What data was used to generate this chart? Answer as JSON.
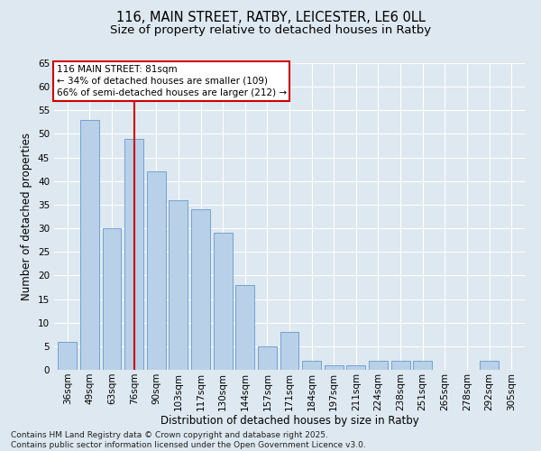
{
  "title1": "116, MAIN STREET, RATBY, LEICESTER, LE6 0LL",
  "title2": "Size of property relative to detached houses in Ratby",
  "xlabel": "Distribution of detached houses by size in Ratby",
  "ylabel": "Number of detached properties",
  "categories": [
    "36sqm",
    "49sqm",
    "63sqm",
    "76sqm",
    "90sqm",
    "103sqm",
    "117sqm",
    "130sqm",
    "144sqm",
    "157sqm",
    "171sqm",
    "184sqm",
    "197sqm",
    "211sqm",
    "224sqm",
    "238sqm",
    "251sqm",
    "265sqm",
    "278sqm",
    "292sqm",
    "305sqm"
  ],
  "values": [
    6,
    53,
    30,
    49,
    42,
    36,
    34,
    29,
    18,
    5,
    8,
    2,
    1,
    1,
    2,
    2,
    2,
    0,
    0,
    2,
    0
  ],
  "bar_color": "#b8d0e8",
  "bar_edgecolor": "#6699cc",
  "bar_linewidth": 0.6,
  "vline_x": 3,
  "vline_color": "#cc0000",
  "annotation_title": "116 MAIN STREET: 81sqm",
  "annotation_line1": "← 34% of detached houses are smaller (109)",
  "annotation_line2": "66% of semi-detached houses are larger (212) →",
  "annotation_box_color": "#cc0000",
  "ylim": [
    0,
    65
  ],
  "yticks": [
    0,
    5,
    10,
    15,
    20,
    25,
    30,
    35,
    40,
    45,
    50,
    55,
    60,
    65
  ],
  "bg_color": "#dde8f0",
  "plot_bg_color": "#dde8f0",
  "grid_color": "#ffffff",
  "footer": "Contains HM Land Registry data © Crown copyright and database right 2025.\nContains public sector information licensed under the Open Government Licence v3.0.",
  "title_fontsize": 10.5,
  "subtitle_fontsize": 9.5,
  "axis_label_fontsize": 8.5,
  "tick_fontsize": 7.5,
  "footer_fontsize": 6.5,
  "ann_fontsize": 7.5
}
